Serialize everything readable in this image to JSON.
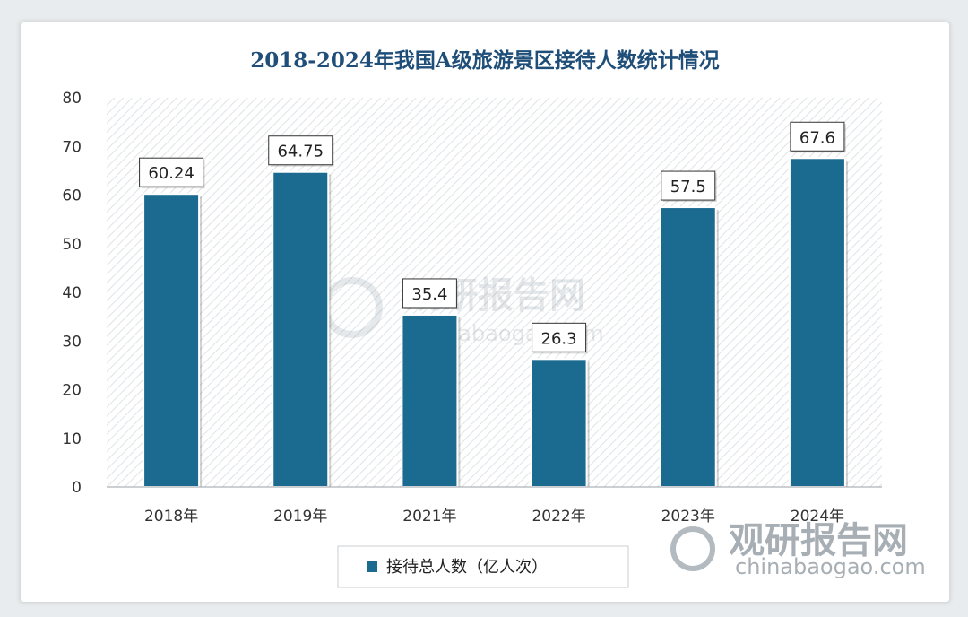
{
  "chart_data": {
    "type": "bar",
    "title": "2018-2024年我国A级旅游景区接待人数统计情况",
    "categories": [
      "2018年",
      "2019年",
      "2021年",
      "2022年",
      "2023年",
      "2024年"
    ],
    "series": [
      {
        "name": "接待总人数（亿人次）",
        "values": [
          60.24,
          64.75,
          35.4,
          26.3,
          57.5,
          67.6
        ]
      }
    ],
    "data_labels": [
      "60.24",
      "64.75",
      "35.4",
      "26.3",
      "57.5",
      "67.6"
    ],
    "ylim": [
      0,
      80
    ],
    "yticks": [
      0,
      10,
      20,
      30,
      40,
      50,
      60,
      70,
      80
    ],
    "xlabel": "",
    "ylabel": "",
    "grid": false,
    "legend_position": "bottom",
    "bar_color": "#1b6a8f"
  },
  "watermark": {
    "text_cn": "观研报告网",
    "text_url": "chinabaogao.com"
  }
}
